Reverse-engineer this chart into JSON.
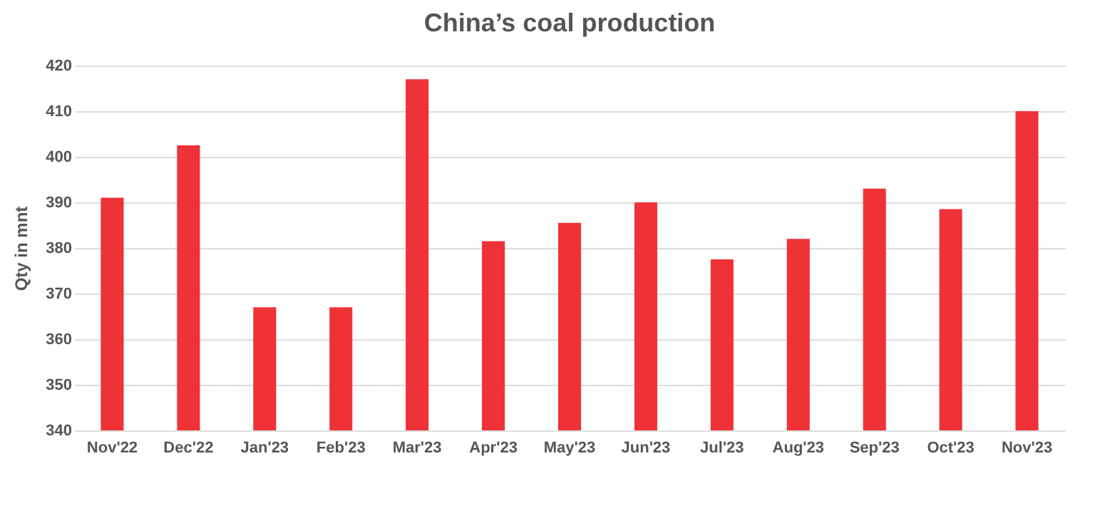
{
  "chart_data": {
    "type": "bar",
    "title": "China’s coal production",
    "ylabel": "Qty in mnt",
    "categories": [
      "Nov'22",
      "Dec'22",
      "Jan'23",
      "Feb'23",
      "Mar'23",
      "Apr'23",
      "May'23",
      "Jun'23",
      "Jul'23",
      "Aug'23",
      "Sep'23",
      "Oct'23",
      "Nov'23"
    ],
    "values": [
      391,
      402.5,
      367,
      367,
      417,
      381.5,
      385.5,
      390,
      377.5,
      382,
      393,
      388.5,
      410
    ],
    "color": "#ee3237",
    "ylim": [
      340,
      420
    ],
    "yticks": [
      340,
      350,
      360,
      370,
      380,
      390,
      400,
      410,
      420
    ],
    "grid": "y"
  }
}
